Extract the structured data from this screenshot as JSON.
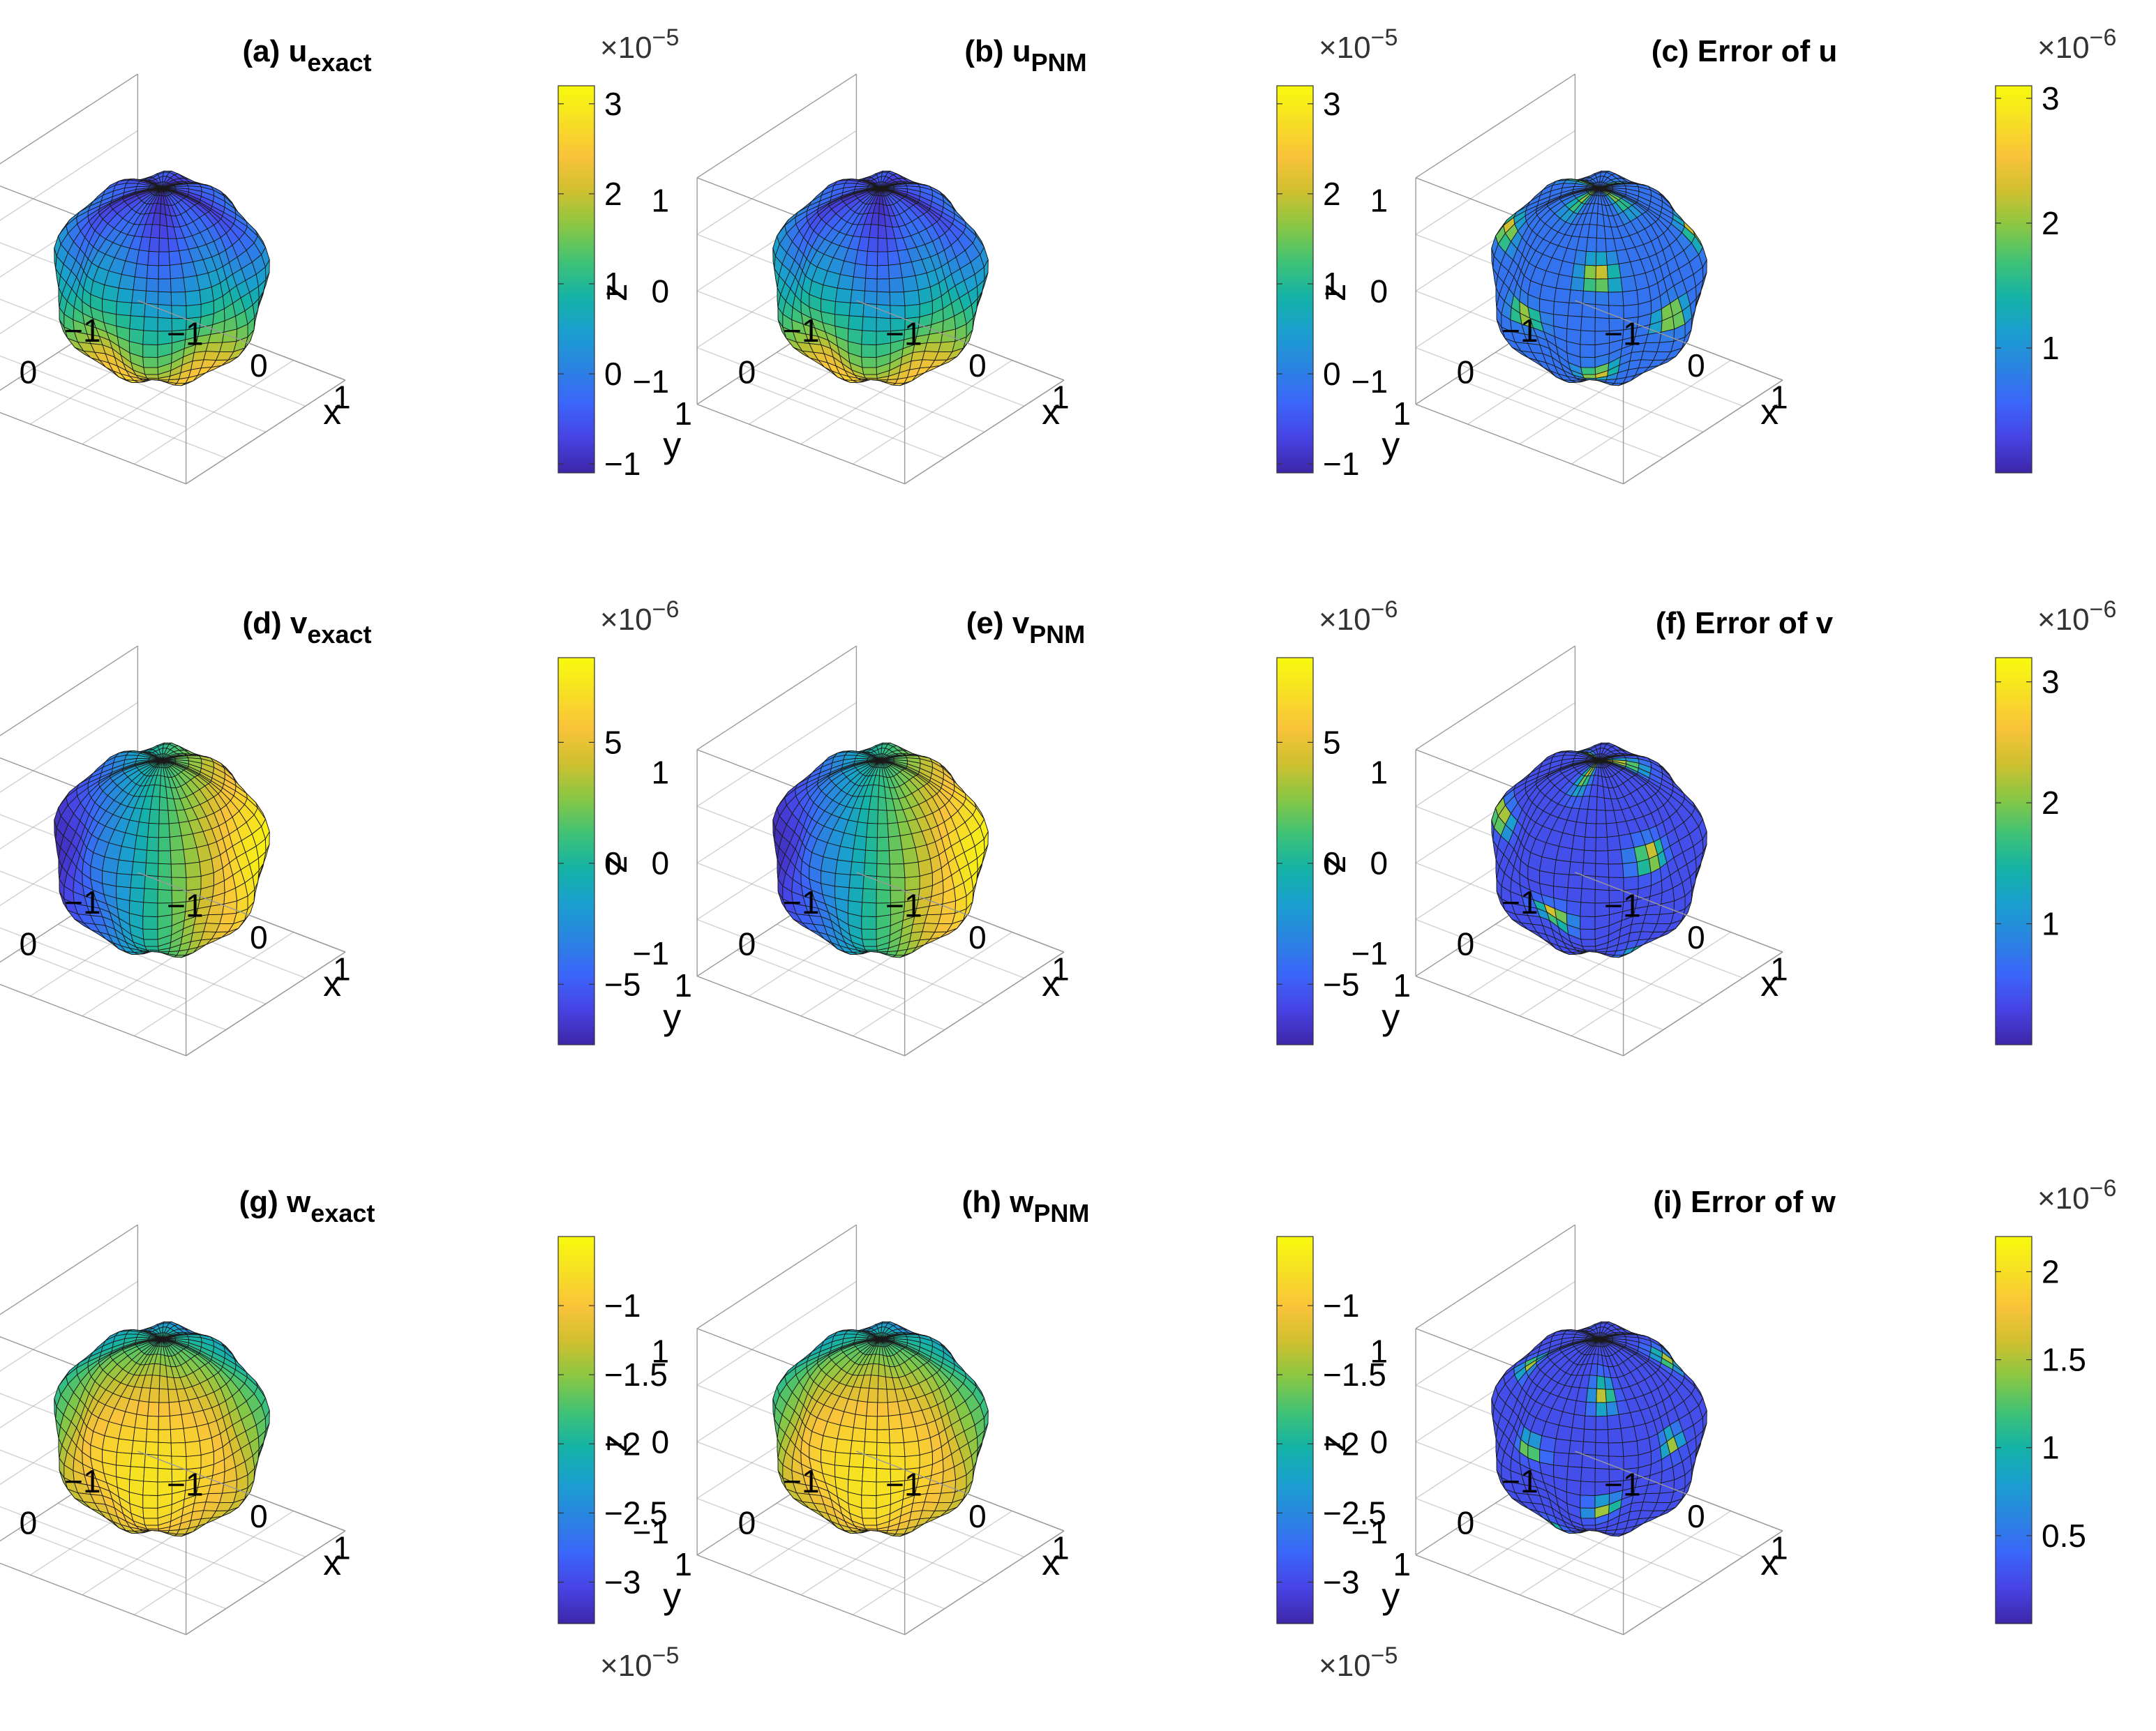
{
  "colormap": "parula",
  "colors": {
    "parula": [
      "#3e26a8",
      "#4743e4",
      "#3b66fa",
      "#2a84e1",
      "#1a9fcf",
      "#14b3a6",
      "#3fc276",
      "#88c744",
      "#cfc02f",
      "#f9c33a",
      "#f7df24",
      "#f8fa0d"
    ],
    "mesh": "#1a1a1a",
    "axes": "#9a9a9a"
  },
  "axis_labels": {
    "x": "x",
    "y": "y",
    "z": "z"
  },
  "axis_ticks": {
    "z": [
      "1",
      "0",
      "−1"
    ],
    "y": [
      "1",
      "0",
      "−1"
    ],
    "x": [
      "−1",
      "0",
      "1"
    ]
  },
  "chart_data": [
    {
      "type": "surface",
      "title_main": "(a) u",
      "title_sub": "exact",
      "colorbar": {
        "ticks": [
          "3",
          "2",
          "1",
          "0",
          "−1"
        ],
        "range": [
          -1.1,
          3.2
        ],
        "exponent_label": "×10",
        "exponent_power": "−5",
        "exponent_position": "top"
      },
      "color_field": "u"
    },
    {
      "type": "surface",
      "title_main": "(b) u",
      "title_sub": "PNM",
      "colorbar": {
        "ticks": [
          "3",
          "2",
          "1",
          "0",
          "−1"
        ],
        "range": [
          -1.1,
          3.2
        ],
        "exponent_label": "×10",
        "exponent_power": "−5",
        "exponent_position": "top"
      },
      "color_field": "u"
    },
    {
      "type": "surface",
      "title_main": "(c) Error of u",
      "title_sub": "",
      "colorbar": {
        "ticks": [
          "3",
          "2",
          "1"
        ],
        "range": [
          0,
          3.1
        ],
        "exponent_label": "×10",
        "exponent_power": "−6",
        "exponent_position": "top"
      },
      "color_field": "error_u"
    },
    {
      "type": "surface",
      "title_main": "(d) v",
      "title_sub": "exact",
      "colorbar": {
        "ticks": [
          "5",
          "0",
          "−5"
        ],
        "range": [
          -7.5,
          8.5
        ],
        "exponent_label": "×10",
        "exponent_power": "−6",
        "exponent_position": "top"
      },
      "color_field": "v"
    },
    {
      "type": "surface",
      "title_main": "(e) v",
      "title_sub": "PNM",
      "colorbar": {
        "ticks": [
          "5",
          "0",
          "−5"
        ],
        "range": [
          -7.5,
          8.5
        ],
        "exponent_label": "×10",
        "exponent_power": "−6",
        "exponent_position": "top"
      },
      "color_field": "v"
    },
    {
      "type": "surface",
      "title_main": "(f) Error of v",
      "title_sub": "",
      "colorbar": {
        "ticks": [
          "3",
          "2",
          "1"
        ],
        "range": [
          0,
          3.2
        ],
        "exponent_label": "×10",
        "exponent_power": "−6",
        "exponent_position": "top"
      },
      "color_field": "error_v"
    },
    {
      "type": "surface",
      "title_main": "(g) w",
      "title_sub": "exact",
      "colorbar": {
        "ticks": [
          "−1",
          "−1.5",
          "−2",
          "−2.5",
          "−3"
        ],
        "range": [
          -3.3,
          -0.5
        ],
        "exponent_label": "×10",
        "exponent_power": "−5",
        "exponent_position": "bottom"
      },
      "color_field": "w"
    },
    {
      "type": "surface",
      "title_main": "(h) w",
      "title_sub": "PNM",
      "colorbar": {
        "ticks": [
          "−1",
          "−1.5",
          "−2",
          "−2.5",
          "−3"
        ],
        "range": [
          -3.3,
          -0.5
        ],
        "exponent_label": "×10",
        "exponent_power": "−5",
        "exponent_position": "bottom"
      },
      "color_field": "w"
    },
    {
      "type": "surface",
      "title_main": "(i) Error of w",
      "title_sub": "",
      "colorbar": {
        "ticks": [
          "2",
          "1.5",
          "1",
          "0.5"
        ],
        "range": [
          0,
          2.2
        ],
        "exponent_label": "×10",
        "exponent_power": "−6",
        "exponent_position": "top"
      },
      "color_field": "error_w"
    }
  ]
}
